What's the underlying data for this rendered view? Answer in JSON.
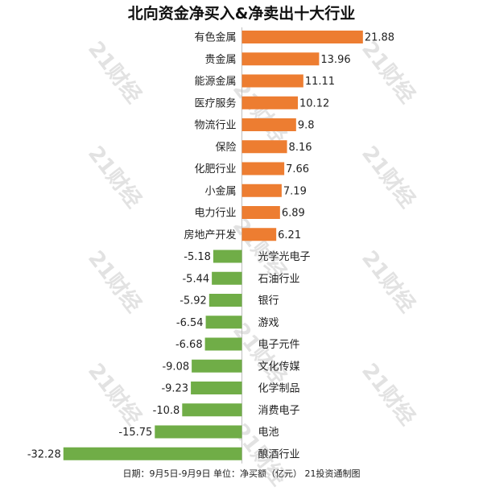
{
  "chart_data": {
    "type": "bar",
    "orientation": "horizontal",
    "title": "北向资金净买入&净卖出十大行业",
    "footer": "日期：9月5日-9月9日 单位：净买额（亿元） 21投资通制图",
    "watermark": "21财经",
    "colors": {
      "positive": "#ED7D31",
      "negative": "#70AD47"
    },
    "grid": false,
    "xlim": [
      -32.28,
      21.88
    ],
    "categories": [
      "有色金属",
      "贵金属",
      "能源金属",
      "医疗服务",
      "物流行业",
      "保险",
      "化肥行业",
      "小金属",
      "电力行业",
      "房地产开发",
      "光学光电子",
      "石油行业",
      "银行",
      "游戏",
      "电子元件",
      "文化传媒",
      "化学制品",
      "消费电子",
      "电池",
      "酿酒行业"
    ],
    "values": [
      21.88,
      13.96,
      11.11,
      10.12,
      9.8,
      8.16,
      7.66,
      7.19,
      6.89,
      6.21,
      -5.18,
      -5.44,
      -5.92,
      -6.54,
      -6.68,
      -9.08,
      -9.23,
      -10.8,
      -15.75,
      -32.28
    ],
    "value_labels": [
      "21.88",
      "13.96",
      "11.11",
      "10.12",
      "9.8",
      "8.16",
      "7.66",
      "7.19",
      "6.89",
      "6.21",
      "-5.18",
      "-5.44",
      "-5.92",
      "-6.54",
      "-6.68",
      "-9.08",
      "-9.23",
      "-10.8",
      "-15.75",
      "-32.28"
    ]
  }
}
